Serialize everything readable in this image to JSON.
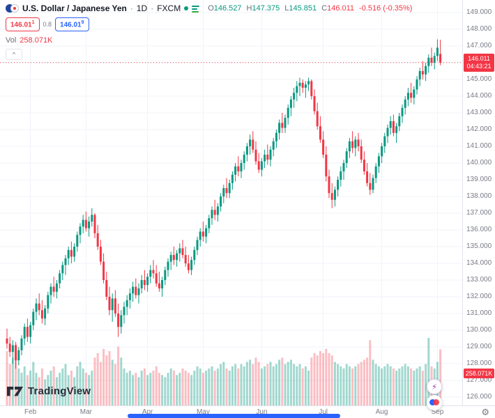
{
  "header": {
    "title": "U.S. Dollar / Japanese Yen",
    "sep": "·",
    "timeframe": "1D",
    "exchange": "FXCM",
    "ohlc": {
      "o_label": "O",
      "o_value": "146.527",
      "h_label": "H",
      "h_value": "147.375",
      "l_label": "L",
      "l_value": "145.851",
      "c_label": "C",
      "c_value": "146.011",
      "change": "-0.516 (-0.35%)"
    },
    "sell": {
      "base": "146.01",
      "sup": "1"
    },
    "spread": "0.8",
    "buy": {
      "base": "146.01",
      "sup": "9"
    },
    "vol_label": "Vol",
    "vol_value": "258.071K"
  },
  "icons": {
    "collapse": "^",
    "gear": "⚙",
    "lightning": "⚡"
  },
  "axis": {
    "price_labels": [
      "149.000",
      "148.000",
      "147.000",
      "146.000",
      "145.000",
      "144.000",
      "143.000",
      "142.000",
      "141.000",
      "140.000",
      "139.000",
      "138.000",
      "137.000",
      "136.000",
      "135.000",
      "134.000",
      "133.000",
      "132.000",
      "131.000",
      "130.000",
      "129.000",
      "128.000",
      "127.000",
      "126.000"
    ],
    "last_price_badge": {
      "price": "146.011",
      "countdown": "04:43:21"
    },
    "volume_badge": "258.071K"
  },
  "footer": {
    "logo_text": "TradingView"
  },
  "colors": {
    "up": "#089981",
    "down": "#f23645",
    "buy_blue": "#2962ff",
    "axis_text": "#787b86",
    "grid": "#f0f3fa",
    "badge_red": "#f23645",
    "scrollbar_blue": "#2962ff"
  },
  "chart_data": {
    "type": "candlestick",
    "symbol": "USD/JPY",
    "exchange": "FXCM",
    "timeframe": "1D",
    "title": "U.S. Dollar / Japanese Yen · 1D · FXCM",
    "legend_position": "top-left",
    "grid": true,
    "y_axis": {
      "min": 126,
      "max": 149,
      "tick": 1
    },
    "x_axis_months": [
      "Feb",
      "Mar",
      "Apr",
      "May",
      "Jun",
      "Jul",
      "Aug",
      "Sep"
    ],
    "month_ticks": [
      {
        "label": "Feb",
        "index": 8
      },
      {
        "label": "Mar",
        "index": 27
      },
      {
        "label": "Apr",
        "index": 48
      },
      {
        "label": "May",
        "index": 67
      },
      {
        "label": "Jun",
        "index": 87
      },
      {
        "label": "Jul",
        "index": 108
      },
      {
        "label": "Aug",
        "index": 128
      },
      {
        "label": "Sep",
        "index": 147
      }
    ],
    "last": {
      "open": 146.527,
      "high": 147.375,
      "low": 145.851,
      "close": 146.011,
      "change": -0.516,
      "change_pct": -0.35,
      "volume_k": 258.071,
      "countdown": "04:43:21"
    },
    "volume_scale_max_k": 320,
    "candles_ohlcv_k": [
      [
        129.5,
        130.1,
        128.9,
        129.2,
        250
      ],
      [
        129.2,
        129.6,
        128.4,
        128.7,
        190
      ],
      [
        128.7,
        129.4,
        128.0,
        129.1,
        220
      ],
      [
        129.1,
        129.3,
        127.7,
        128.2,
        280
      ],
      [
        128.2,
        129.0,
        127.9,
        128.8,
        170
      ],
      [
        128.8,
        129.7,
        128.5,
        129.5,
        150
      ],
      [
        129.5,
        130.4,
        129.1,
        130.2,
        180
      ],
      [
        130.2,
        130.7,
        129.3,
        129.6,
        140
      ],
      [
        129.6,
        130.5,
        129.2,
        130.3,
        160
      ],
      [
        130.3,
        131.3,
        130.0,
        131.1,
        200
      ],
      [
        131.1,
        131.9,
        130.6,
        131.6,
        150
      ],
      [
        131.6,
        132.2,
        130.9,
        131.2,
        130
      ],
      [
        131.2,
        131.8,
        130.4,
        130.7,
        170
      ],
      [
        130.7,
        131.5,
        130.3,
        131.3,
        120
      ],
      [
        131.3,
        132.3,
        131.0,
        132.1,
        140
      ],
      [
        132.1,
        132.8,
        131.6,
        132.6,
        160
      ],
      [
        132.6,
        133.2,
        132.0,
        132.3,
        180
      ],
      [
        132.3,
        133.0,
        131.9,
        132.8,
        130
      ],
      [
        132.8,
        133.6,
        132.5,
        133.4,
        150
      ],
      [
        133.4,
        134.1,
        133.0,
        133.9,
        170
      ],
      [
        133.9,
        134.5,
        133.3,
        134.3,
        190
      ],
      [
        134.3,
        135.0,
        133.9,
        134.8,
        140
      ],
      [
        134.8,
        135.3,
        134.0,
        134.4,
        160
      ],
      [
        134.4,
        135.2,
        134.1,
        135.0,
        130
      ],
      [
        135.0,
        135.9,
        134.7,
        135.7,
        180
      ],
      [
        135.7,
        136.4,
        135.2,
        136.2,
        200
      ],
      [
        136.2,
        136.9,
        135.8,
        136.6,
        170
      ],
      [
        136.6,
        137.1,
        135.9,
        136.1,
        150
      ],
      [
        136.1,
        136.8,
        135.6,
        136.5,
        140
      ],
      [
        136.5,
        137.3,
        136.2,
        136.9,
        160
      ],
      [
        136.9,
        137.0,
        135.5,
        135.8,
        220
      ],
      [
        135.8,
        136.3,
        134.8,
        135.0,
        240
      ],
      [
        135.0,
        135.4,
        133.9,
        134.1,
        200
      ],
      [
        134.1,
        134.6,
        132.8,
        133.0,
        260
      ],
      [
        133.0,
        133.5,
        131.8,
        132.0,
        230
      ],
      [
        132.0,
        132.6,
        130.9,
        131.2,
        250
      ],
      [
        131.2,
        132.2,
        130.5,
        131.9,
        210
      ],
      [
        131.9,
        132.4,
        130.8,
        131.0,
        190
      ],
      [
        131.0,
        131.6,
        129.6,
        130.2,
        270
      ],
      [
        130.2,
        131.2,
        129.8,
        130.9,
        220
      ],
      [
        130.9,
        131.7,
        130.4,
        131.4,
        170
      ],
      [
        131.4,
        132.1,
        130.9,
        131.8,
        150
      ],
      [
        131.8,
        132.5,
        131.3,
        132.2,
        160
      ],
      [
        132.2,
        132.9,
        131.7,
        132.6,
        140
      ],
      [
        132.6,
        133.1,
        131.9,
        132.1,
        150
      ],
      [
        132.1,
        132.8,
        131.6,
        132.5,
        130
      ],
      [
        132.5,
        133.3,
        132.2,
        133.0,
        160
      ],
      [
        133.0,
        133.6,
        132.4,
        132.7,
        170
      ],
      [
        132.7,
        133.4,
        132.3,
        133.2,
        140
      ],
      [
        133.2,
        133.9,
        132.8,
        133.6,
        150
      ],
      [
        133.6,
        134.2,
        133.1,
        133.4,
        160
      ],
      [
        133.4,
        133.9,
        132.6,
        132.8,
        180
      ],
      [
        132.8,
        133.5,
        132.3,
        132.5,
        150
      ],
      [
        132.5,
        133.2,
        132.0,
        133.0,
        140
      ],
      [
        133.0,
        133.8,
        132.7,
        133.6,
        130
      ],
      [
        133.6,
        134.3,
        133.2,
        134.1,
        150
      ],
      [
        134.1,
        134.7,
        133.6,
        134.5,
        170
      ],
      [
        134.5,
        135.0,
        133.9,
        134.2,
        160
      ],
      [
        134.2,
        134.8,
        133.8,
        134.6,
        140
      ],
      [
        134.6,
        135.2,
        134.1,
        134.9,
        150
      ],
      [
        134.9,
        135.4,
        134.3,
        134.5,
        170
      ],
      [
        134.5,
        135.0,
        133.8,
        134.0,
        160
      ],
      [
        134.0,
        134.5,
        133.4,
        133.6,
        150
      ],
      [
        133.6,
        134.4,
        133.3,
        134.2,
        140
      ],
      [
        134.2,
        135.0,
        133.9,
        134.8,
        160
      ],
      [
        134.8,
        135.6,
        134.5,
        135.4,
        180
      ],
      [
        135.4,
        136.1,
        135.0,
        135.9,
        170
      ],
      [
        135.9,
        136.5,
        135.3,
        135.6,
        150
      ],
      [
        135.6,
        136.3,
        135.2,
        136.1,
        160
      ],
      [
        136.1,
        136.9,
        135.8,
        136.7,
        170
      ],
      [
        136.7,
        137.4,
        136.3,
        137.2,
        180
      ],
      [
        137.2,
        137.8,
        136.6,
        136.9,
        160
      ],
      [
        136.9,
        137.6,
        136.5,
        137.4,
        170
      ],
      [
        137.4,
        138.2,
        137.1,
        138.0,
        190
      ],
      [
        138.0,
        138.7,
        137.6,
        138.5,
        200
      ],
      [
        138.5,
        139.1,
        137.9,
        138.2,
        170
      ],
      [
        138.2,
        139.0,
        137.9,
        138.8,
        160
      ],
      [
        138.8,
        139.5,
        138.4,
        139.3,
        180
      ],
      [
        139.3,
        140.0,
        138.9,
        139.8,
        190
      ],
      [
        139.8,
        140.4,
        139.2,
        139.5,
        170
      ],
      [
        139.5,
        140.2,
        139.1,
        140.0,
        190
      ],
      [
        140.0,
        140.7,
        139.6,
        140.5,
        180
      ],
      [
        140.5,
        141.2,
        140.1,
        141.0,
        200
      ],
      [
        141.0,
        141.7,
        140.5,
        141.4,
        210
      ],
      [
        141.4,
        141.9,
        140.6,
        140.8,
        190
      ],
      [
        140.8,
        141.3,
        139.9,
        140.1,
        220
      ],
      [
        140.1,
        140.6,
        139.4,
        139.6,
        200
      ],
      [
        139.6,
        140.3,
        139.2,
        140.1,
        170
      ],
      [
        140.1,
        140.8,
        139.7,
        140.5,
        180
      ],
      [
        140.5,
        141.1,
        139.9,
        140.2,
        190
      ],
      [
        140.2,
        141.0,
        139.8,
        140.8,
        200
      ],
      [
        140.8,
        141.5,
        140.4,
        141.3,
        180
      ],
      [
        141.3,
        142.0,
        140.9,
        141.8,
        190
      ],
      [
        141.8,
        142.6,
        141.4,
        142.4,
        210
      ],
      [
        142.4,
        143.0,
        141.8,
        142.1,
        220
      ],
      [
        142.1,
        142.9,
        141.8,
        142.7,
        190
      ],
      [
        142.7,
        143.5,
        142.3,
        143.3,
        200
      ],
      [
        143.3,
        144.0,
        142.8,
        143.8,
        210
      ],
      [
        143.8,
        144.5,
        143.3,
        144.2,
        190
      ],
      [
        144.2,
        144.9,
        143.7,
        144.6,
        180
      ],
      [
        144.6,
        145.1,
        144.0,
        144.8,
        190
      ],
      [
        144.8,
        145.0,
        144.2,
        144.5,
        170
      ],
      [
        144.5,
        144.9,
        143.9,
        144.7,
        180
      ],
      [
        144.7,
        145.1,
        144.3,
        144.9,
        160
      ],
      [
        144.9,
        145.0,
        143.8,
        144.0,
        220
      ],
      [
        144.0,
        144.4,
        142.9,
        143.1,
        240
      ],
      [
        143.1,
        143.6,
        142.0,
        142.2,
        230
      ],
      [
        142.2,
        142.8,
        141.2,
        141.4,
        250
      ],
      [
        141.4,
        141.9,
        140.3,
        140.5,
        240
      ],
      [
        140.5,
        141.0,
        138.9,
        139.2,
        260
      ],
      [
        139.2,
        139.6,
        137.9,
        138.2,
        240
      ],
      [
        138.2,
        138.8,
        137.3,
        137.8,
        230
      ],
      [
        137.8,
        138.6,
        137.4,
        138.4,
        200
      ],
      [
        138.4,
        139.2,
        138.0,
        139.0,
        190
      ],
      [
        139.0,
        139.8,
        138.6,
        139.5,
        180
      ],
      [
        139.5,
        140.2,
        139.0,
        140.0,
        170
      ],
      [
        140.0,
        140.9,
        139.7,
        140.7,
        190
      ],
      [
        140.7,
        141.5,
        140.3,
        141.3,
        180
      ],
      [
        141.3,
        141.9,
        140.6,
        140.9,
        170
      ],
      [
        140.9,
        141.6,
        140.4,
        141.4,
        180
      ],
      [
        141.4,
        141.8,
        140.7,
        141.0,
        190
      ],
      [
        141.0,
        141.4,
        140.0,
        140.2,
        200
      ],
      [
        140.2,
        140.7,
        139.3,
        139.5,
        210
      ],
      [
        139.5,
        140.0,
        138.6,
        138.8,
        220
      ],
      [
        138.8,
        139.4,
        138.1,
        138.4,
        300
      ],
      [
        138.4,
        139.3,
        138.2,
        139.1,
        210
      ],
      [
        139.1,
        140.0,
        138.8,
        139.8,
        190
      ],
      [
        139.8,
        140.6,
        139.4,
        140.4,
        180
      ],
      [
        140.4,
        141.2,
        140.0,
        141.0,
        170
      ],
      [
        141.0,
        141.8,
        140.6,
        141.6,
        180
      ],
      [
        141.6,
        142.3,
        141.2,
        142.1,
        190
      ],
      [
        142.1,
        142.8,
        141.7,
        142.5,
        180
      ],
      [
        142.5,
        142.9,
        141.6,
        141.8,
        170
      ],
      [
        141.8,
        142.4,
        141.2,
        142.2,
        160
      ],
      [
        142.2,
        143.0,
        141.9,
        142.8,
        170
      ],
      [
        142.8,
        143.5,
        142.4,
        143.3,
        180
      ],
      [
        143.3,
        144.0,
        142.9,
        143.8,
        190
      ],
      [
        143.8,
        144.5,
        143.4,
        144.2,
        180
      ],
      [
        144.2,
        144.8,
        143.6,
        143.9,
        170
      ],
      [
        143.9,
        144.6,
        143.5,
        144.4,
        160
      ],
      [
        144.4,
        145.2,
        144.1,
        145.0,
        170
      ],
      [
        145.0,
        145.7,
        144.6,
        145.5,
        180
      ],
      [
        145.5,
        146.1,
        145.0,
        145.3,
        160
      ],
      [
        145.3,
        146.0,
        144.9,
        145.8,
        190
      ],
      [
        145.8,
        146.5,
        145.4,
        146.3,
        310
      ],
      [
        146.3,
        146.9,
        145.8,
        146.0,
        180
      ],
      [
        146.0,
        146.6,
        145.6,
        146.4,
        170
      ],
      [
        146.4,
        147.4,
        146.1,
        146.9,
        200
      ],
      [
        146.527,
        147.375,
        145.851,
        146.011,
        258
      ]
    ]
  }
}
